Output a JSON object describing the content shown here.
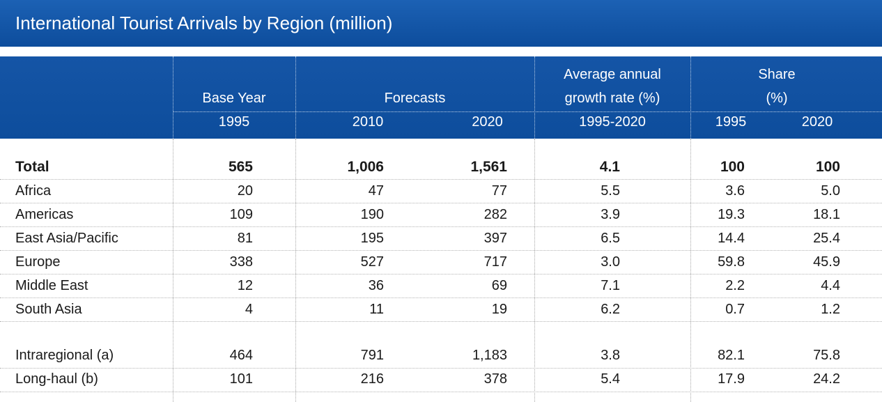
{
  "title": "International Tourist Arrivals by Region (million)",
  "header": {
    "base_year": "Base Year",
    "forecasts": "Forecasts",
    "growth_line1": "Average annual",
    "growth_line2": "growth rate (%)",
    "share_line1": "Share",
    "share_line2": "(%)",
    "sub": [
      "1995",
      "2010",
      "2020",
      "1995-2020",
      "1995",
      "2020"
    ]
  },
  "rows": [
    {
      "label": "Total",
      "values": [
        "565",
        "1,006",
        "1,561",
        "4.1",
        "100",
        "100"
      ]
    },
    {
      "label": "Africa",
      "values": [
        "20",
        "47",
        "77",
        "5.5",
        "3.6",
        "5.0"
      ]
    },
    {
      "label": "Americas",
      "values": [
        "109",
        "190",
        "282",
        "3.9",
        "19.3",
        "18.1"
      ]
    },
    {
      "label": "East Asia/Pacific",
      "values": [
        "81",
        "195",
        "397",
        "6.5",
        "14.4",
        "25.4"
      ]
    },
    {
      "label": "Europe",
      "values": [
        "338",
        "527",
        "717",
        "3.0",
        "59.8",
        "45.9"
      ]
    },
    {
      "label": "Middle East",
      "values": [
        "12",
        "36",
        "69",
        "7.1",
        "2.2",
        "4.4"
      ]
    },
    {
      "label": "South Asia",
      "values": [
        "4",
        "11",
        "19",
        "6.2",
        "0.7",
        "1.2"
      ]
    },
    {
      "label": "Intraregional (a)",
      "values": [
        "464",
        "791",
        "1,183",
        "3.8",
        "82.1",
        "75.8"
      ]
    },
    {
      "label": "Long-haul (b)",
      "values": [
        "101",
        "216",
        "378",
        "5.4",
        "17.9",
        "24.2"
      ]
    }
  ],
  "chart_data": {
    "type": "table",
    "title": "International Tourist Arrivals by Region (million)",
    "columns": [
      "1995",
      "2010",
      "2020",
      "1995-2020",
      "1995",
      "2020"
    ],
    "column_groups": [
      "Base Year",
      "Forecasts",
      "Forecasts",
      "Average annual growth rate (%)",
      "Share (%)",
      "Share (%)"
    ],
    "rows": [
      {
        "label": "Total",
        "values": [
          565,
          1006,
          1561,
          4.1,
          100,
          100
        ]
      },
      {
        "label": "Africa",
        "values": [
          20,
          47,
          77,
          5.5,
          3.6,
          5.0
        ]
      },
      {
        "label": "Americas",
        "values": [
          109,
          190,
          282,
          3.9,
          19.3,
          18.1
        ]
      },
      {
        "label": "East Asia/Pacific",
        "values": [
          81,
          195,
          397,
          6.5,
          14.4,
          25.4
        ]
      },
      {
        "label": "Europe",
        "values": [
          338,
          527,
          717,
          3.0,
          59.8,
          45.9
        ]
      },
      {
        "label": "Middle East",
        "values": [
          12,
          36,
          69,
          7.1,
          2.2,
          4.4
        ]
      },
      {
        "label": "South Asia",
        "values": [
          4,
          11,
          19,
          6.2,
          0.7,
          1.2
        ]
      },
      {
        "label": "Intraregional (a)",
        "values": [
          464,
          791,
          1183,
          3.8,
          82.1,
          75.8
        ]
      },
      {
        "label": "Long-haul (b)",
        "values": [
          101,
          216,
          378,
          5.4,
          17.9,
          24.2
        ]
      }
    ]
  }
}
